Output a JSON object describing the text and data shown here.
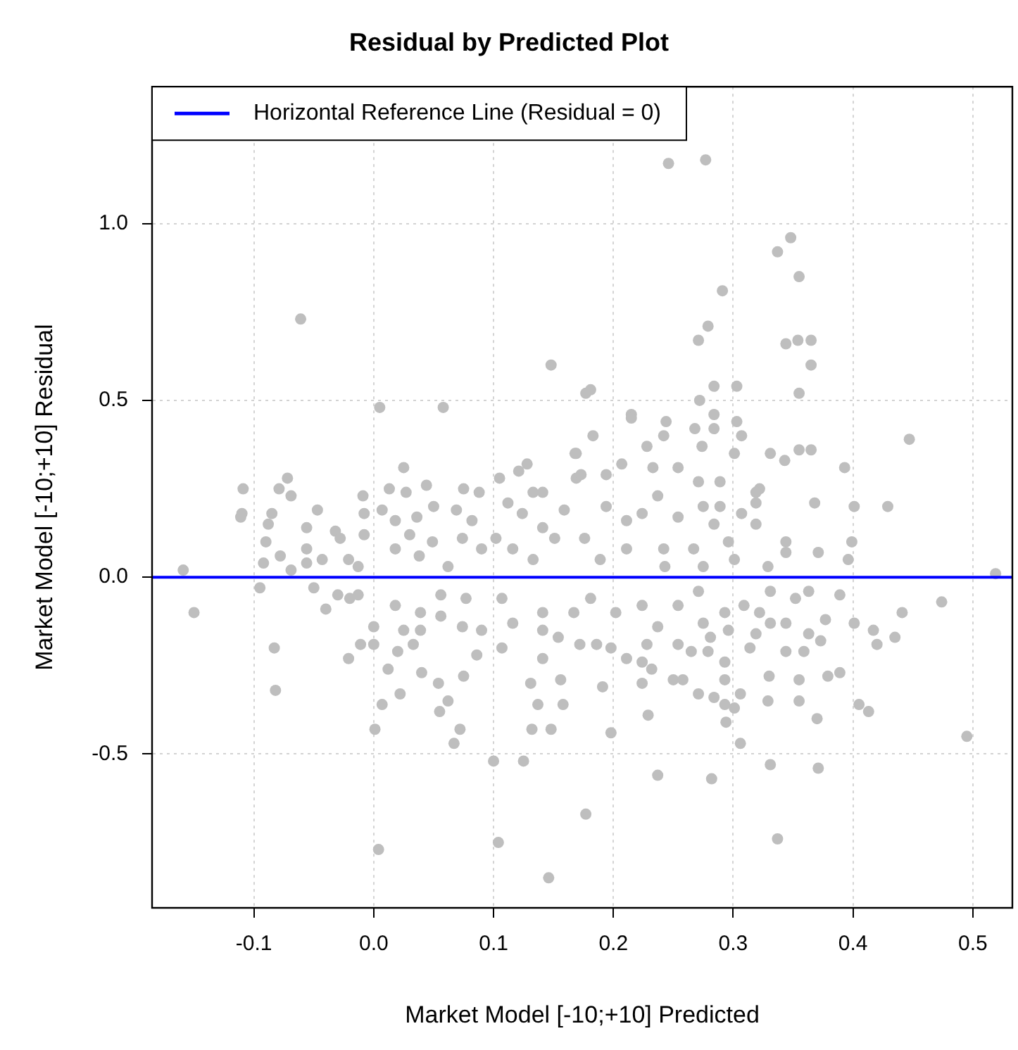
{
  "chart_data": {
    "type": "scatter",
    "title": "Residual by Predicted Plot",
    "xlabel": "Market Model [-10;+10] Predicted",
    "ylabel": "Market Model [-10;+10] Residual",
    "xlim": [
      -0.185,
      0.533
    ],
    "ylim": [
      -0.935,
      1.387
    ],
    "xticks": [
      -0.1,
      {
        "value": 0,
        "label": "0.0"
      },
      0.1,
      0.2,
      0.3,
      0.4,
      0.5
    ],
    "yticks": [
      -0.5,
      {
        "value": 0,
        "label": "0.0"
      },
      0.5,
      {
        "value": 1,
        "label": "1.0"
      }
    ],
    "grid": true,
    "legend": "top left",
    "marker": "circle",
    "ref_lines": [
      {
        "axis": "y",
        "value": 0,
        "label": "Horizontal Reference Line (Residual = 0)",
        "color": "#0000ff",
        "line_style": "solid"
      }
    ],
    "series": [
      {
        "color": "#bebebe",
        "x": [
          -0.159,
          -0.15,
          -0.061,
          -0.109,
          -0.11,
          -0.079,
          -0.082,
          -0.083,
          0.005,
          0.058,
          0.001,
          0.004,
          0.1,
          0.104,
          0.148,
          0.177,
          0.146,
          0.125,
          0.177,
          0.246,
          0.277,
          0.348,
          0.337,
          0.355,
          0.291,
          0.279,
          0.271,
          0.344,
          0.354,
          0.365,
          0.365,
          0.284,
          0.303,
          0.355,
          0.181,
          0.272,
          0.284,
          0.284,
          0.447,
          0.215,
          0.244,
          0.331,
          0.343,
          0.355,
          0.365,
          0.393,
          0.429,
          0.401,
          0.368,
          0.399,
          0.396,
          0.371,
          0.344,
          0.344,
          0.329,
          0.519,
          0.474,
          0.441,
          0.435,
          0.42,
          0.417,
          0.401,
          0.389,
          0.495,
          0.405,
          0.413,
          0.37,
          0.371,
          0.331,
          0.337,
          0.306,
          0.294,
          0.282,
          0.237,
          0.198,
          0.229,
          0.355,
          0.329,
          0.33,
          0.355,
          0.379,
          0.389,
          0.359,
          0.373,
          0.377,
          0.363,
          -0.111,
          -0.072,
          -0.069,
          -0.085,
          -0.088,
          -0.09,
          -0.092,
          -0.078,
          -0.069,
          -0.095,
          -0.056,
          -0.047,
          -0.056,
          -0.056,
          -0.05,
          -0.04,
          -0.03,
          -0.032,
          -0.028,
          -0.043,
          -0.021,
          -0.013,
          -0.009,
          -0.008,
          -0.008,
          -0.02,
          -0.013,
          -0.021,
          -0.011,
          0.0,
          0.0,
          0.012,
          0.02,
          0.025,
          0.033,
          0.007,
          0.022,
          0.04,
          0.054,
          0.055,
          0.062,
          0.072,
          0.067,
          0.075,
          0.086,
          0.137,
          0.132,
          0.148,
          0.158,
          0.131,
          0.156,
          0.141,
          0.025,
          0.013,
          0.027,
          0.044,
          0.05,
          0.007,
          0.018,
          0.036,
          0.03,
          0.049,
          0.018,
          0.038,
          0.075,
          0.088,
          0.069,
          0.082,
          0.074,
          0.062,
          0.09,
          0.105,
          0.121,
          0.128,
          0.112,
          0.133,
          0.141,
          0.102,
          0.124,
          0.116,
          0.141,
          0.151,
          0.169,
          0.169,
          0.159,
          0.133,
          0.018,
          0.039,
          0.056,
          0.074,
          0.039,
          0.077,
          0.107,
          0.116,
          0.107,
          0.141,
          0.154,
          0.141,
          0.167,
          0.172,
          0.09,
          0.056,
          0.168,
          0.173,
          0.183,
          0.194,
          0.207,
          0.215,
          0.228,
          0.242,
          0.233,
          0.254,
          0.268,
          0.274,
          0.271,
          0.289,
          0.301,
          0.307,
          0.303,
          0.194,
          0.211,
          0.224,
          0.237,
          0.254,
          0.275,
          0.289,
          0.284,
          0.307,
          0.319,
          0.319,
          0.322,
          0.319,
          0.176,
          0.211,
          0.242,
          0.243,
          0.267,
          0.296,
          0.301,
          0.275,
          0.189,
          0.181,
          0.202,
          0.224,
          0.237,
          0.254,
          0.271,
          0.275,
          0.293,
          0.309,
          0.296,
          0.314,
          0.331,
          0.344,
          0.344,
          0.322,
          0.331,
          0.352,
          0.363,
          0.319,
          0.186,
          0.198,
          0.211,
          0.224,
          0.232,
          0.191,
          0.224,
          0.25,
          0.258,
          0.271,
          0.284,
          0.293,
          0.301,
          0.279,
          0.293,
          0.265,
          0.254,
          0.228,
          0.281,
          0.306,
          0.293
        ],
        "values": [
          0.02,
          -0.1,
          0.73,
          0.25,
          0.18,
          0.25,
          -0.32,
          -0.2,
          0.48,
          0.48,
          -0.43,
          -0.77,
          -0.52,
          -0.75,
          0.6,
          0.52,
          -0.85,
          -0.52,
          -0.67,
          1.17,
          1.18,
          0.96,
          0.92,
          0.85,
          0.81,
          0.71,
          0.67,
          0.66,
          0.67,
          0.67,
          0.6,
          0.54,
          0.54,
          0.52,
          0.53,
          0.5,
          0.46,
          0.42,
          0.39,
          0.46,
          0.44,
          0.35,
          0.33,
          0.36,
          0.36,
          0.31,
          0.2,
          0.2,
          0.21,
          0.1,
          0.05,
          0.07,
          0.1,
          0.07,
          0.03,
          0.01,
          -0.07,
          -0.1,
          -0.17,
          -0.19,
          -0.15,
          -0.13,
          -0.05,
          -0.45,
          -0.36,
          -0.38,
          -0.4,
          -0.54,
          -0.53,
          -0.74,
          -0.47,
          -0.41,
          -0.57,
          -0.56,
          -0.44,
          -0.39,
          -0.35,
          -0.35,
          -0.28,
          -0.29,
          -0.28,
          -0.27,
          -0.21,
          -0.18,
          -0.12,
          -0.16,
          0.17,
          0.28,
          0.23,
          0.18,
          0.15,
          0.1,
          0.04,
          0.06,
          0.02,
          -0.03,
          0.14,
          0.19,
          0.08,
          0.04,
          -0.03,
          -0.09,
          -0.05,
          0.13,
          0.11,
          0.05,
          0.05,
          0.03,
          0.23,
          0.18,
          0.12,
          -0.06,
          -0.05,
          -0.23,
          -0.19,
          -0.14,
          -0.19,
          -0.26,
          -0.21,
          -0.15,
          -0.19,
          -0.36,
          -0.33,
          -0.27,
          -0.3,
          -0.38,
          -0.35,
          -0.43,
          -0.47,
          -0.28,
          -0.22,
          -0.36,
          -0.43,
          -0.43,
          -0.36,
          -0.3,
          -0.29,
          -0.23,
          0.31,
          0.25,
          0.24,
          0.26,
          0.2,
          0.19,
          0.16,
          0.17,
          0.12,
          0.1,
          0.08,
          0.06,
          0.25,
          0.24,
          0.19,
          0.16,
          0.11,
          0.03,
          0.08,
          0.28,
          0.3,
          0.32,
          0.21,
          0.24,
          0.24,
          0.11,
          0.18,
          0.08,
          0.14,
          0.11,
          0.35,
          0.28,
          0.19,
          0.05,
          -0.08,
          -0.1,
          -0.11,
          -0.14,
          -0.15,
          -0.06,
          -0.06,
          -0.13,
          -0.2,
          -0.1,
          -0.17,
          -0.15,
          -0.1,
          -0.19,
          -0.15,
          -0.05,
          0.35,
          0.29,
          0.4,
          0.29,
          0.32,
          0.45,
          0.37,
          0.4,
          0.31,
          0.31,
          0.42,
          0.37,
          0.27,
          0.27,
          0.35,
          0.4,
          0.44,
          0.2,
          0.16,
          0.18,
          0.23,
          0.17,
          0.2,
          0.2,
          0.15,
          0.18,
          0.21,
          0.15,
          0.25,
          0.24,
          0.11,
          0.08,
          0.08,
          0.03,
          0.08,
          0.1,
          0.05,
          0.03,
          0.05,
          -0.06,
          -0.1,
          -0.08,
          -0.14,
          -0.08,
          -0.04,
          -0.13,
          -0.1,
          -0.08,
          -0.15,
          -0.2,
          -0.13,
          -0.13,
          -0.21,
          -0.1,
          -0.04,
          -0.06,
          -0.04,
          -0.16,
          -0.19,
          -0.2,
          -0.23,
          -0.24,
          -0.26,
          -0.31,
          -0.3,
          -0.29,
          -0.29,
          -0.33,
          -0.34,
          -0.36,
          -0.37,
          -0.21,
          -0.24,
          -0.21,
          -0.19,
          -0.19,
          -0.17,
          -0.33,
          -0.29
        ]
      }
    ]
  }
}
